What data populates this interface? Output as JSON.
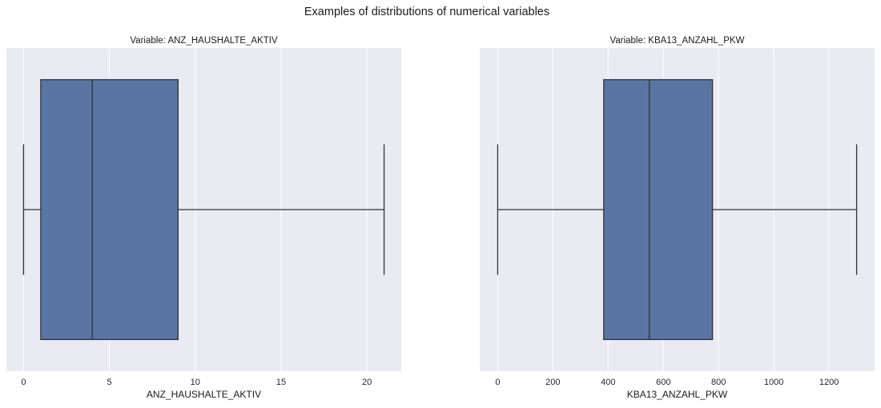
{
  "figure": {
    "title": "Examples of distributions of numerical variables",
    "background": "#ffffff",
    "axes_facecolor": "#eaeaf2",
    "grid_color": "#ffffff",
    "box_color": "#5975a4",
    "line_color": "#333333"
  },
  "chart_data": [
    {
      "type": "box",
      "title": "Variable: ANZ_HAUSHALTE_AKTIV",
      "xlabel": "ANZ_HAUSHALTE_AKTIV",
      "ylabel": "",
      "orientation": "horizontal",
      "xlim": [
        -1.0,
        22.0
      ],
      "xticks": [
        0,
        5,
        10,
        15,
        20
      ],
      "xtick_labels": [
        "0",
        "5",
        "10",
        "15",
        "20"
      ],
      "grid": true,
      "box": {
        "whisker_low": 0,
        "q1": 1,
        "median": 4,
        "q3": 9,
        "whisker_high": 21
      }
    },
    {
      "type": "box",
      "title": "Variable: KBA13_ANZAHL_PKW",
      "xlabel": "KBA13_ANZAHL_PKW",
      "ylabel": "",
      "orientation": "horizontal",
      "xlim": [
        -65,
        1365
      ],
      "xticks": [
        0,
        200,
        400,
        600,
        800,
        1000,
        1200
      ],
      "xtick_labels": [
        "0",
        "200",
        "400",
        "600",
        "800",
        "1000",
        "1200"
      ],
      "grid": true,
      "box": {
        "whisker_low": 0,
        "q1": 384,
        "median": 549,
        "q3": 778,
        "whisker_high": 1300
      }
    }
  ]
}
